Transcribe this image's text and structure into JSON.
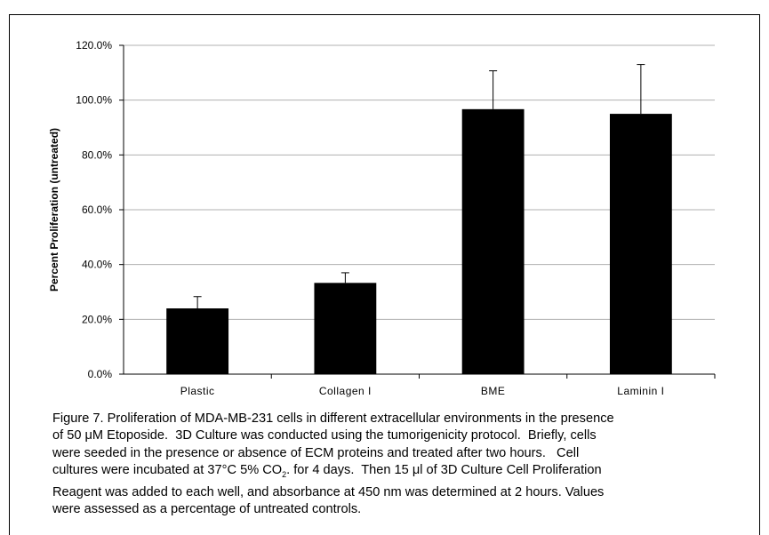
{
  "chart_data": {
    "type": "bar",
    "categories": [
      "Plastic",
      "Collagen I",
      "BME",
      "Laminin I"
    ],
    "values": [
      24.0,
      33.3,
      96.7,
      95.0
    ],
    "error_bars": [
      4.3,
      3.7,
      14.0,
      18.0
    ],
    "ylabel": "Percent Proliferation (untreated)",
    "xlabel": "",
    "ylim": [
      0,
      120
    ],
    "yticks": [
      0,
      20,
      40,
      60,
      80,
      100,
      120
    ],
    "ytick_labels": [
      "0.0%",
      "20.0%",
      "40.0%",
      "60.0%",
      "80.0%",
      "100.0%",
      "120.0%"
    ],
    "grid": true,
    "bar_color": "#000000",
    "grid_color": "#b0b0b0"
  },
  "caption": {
    "line1": "Figure 7. Proliferation of MDA-MB-231 cells in different extracellular environments in the presence",
    "line2": "of 50 μM Etoposide.  3D Culture was conducted using the tumorigenicity protocol.  Briefly, cells",
    "line3": "were seeded in the presence or absence of ECM proteins and treated after two hours.   Cell",
    "line4a": "cultures were incubated at 37°C 5% CO",
    "line4sub": "2",
    "line4b": ". for 4 days.  Then 15 μl of 3D Culture Cell Proliferation",
    "line5": "Reagent was added to each well, and absorbance at 450 nm was determined at 2 hours. Values",
    "line6": "were assessed as a percentage of untreated controls."
  }
}
